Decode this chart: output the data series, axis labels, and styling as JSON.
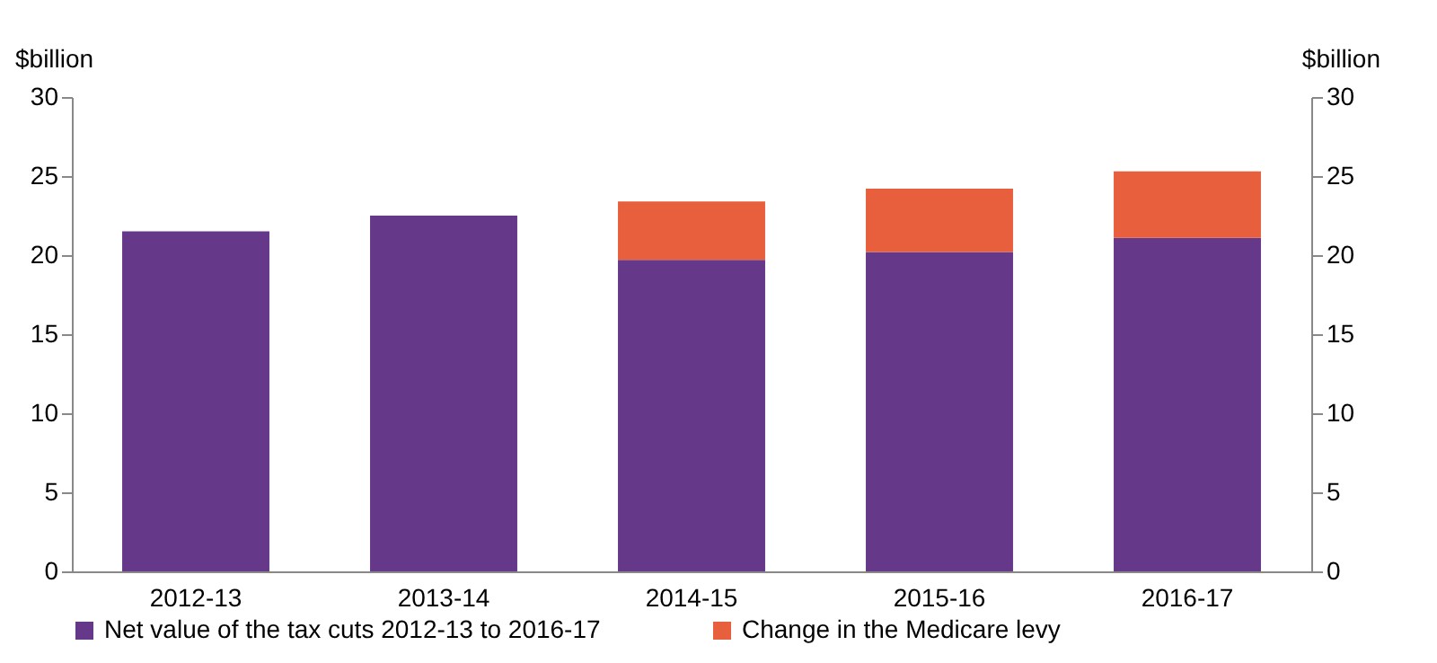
{
  "chart_data": {
    "type": "bar",
    "stacked": true,
    "ylabel": "$billion",
    "y2label": "$billion",
    "categories": [
      "2012-13",
      "2013-14",
      "2014-15",
      "2015-16",
      "2016-17"
    ],
    "series": [
      {
        "name": "Net value of the tax cuts 2012-13 to 2016-17",
        "color": "#663889",
        "values": [
          21.5,
          22.5,
          19.7,
          20.2,
          21.1
        ]
      },
      {
        "name": "Change in the Medicare levy",
        "color": "#e85f3d",
        "values": [
          null,
          null,
          3.7,
          4.0,
          4.2
        ]
      }
    ],
    "ylim": [
      0,
      30
    ],
    "yticks": [
      0,
      5,
      10,
      15,
      20,
      25,
      30
    ],
    "y2lim": [
      0,
      30
    ],
    "y2ticks": [
      0,
      5,
      10,
      15,
      20,
      25,
      30
    ],
    "legend": "bottom",
    "grid": false
  }
}
